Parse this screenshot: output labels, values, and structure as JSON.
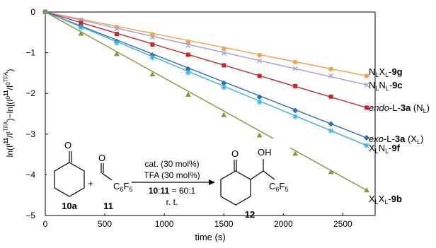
{
  "chart_data": {
    "type": "line",
    "xlabel": "time (s)",
    "ylabel": "ln(I_t11/I_tTFA) − ln(I_011/I_0TFA)",
    "xlim": [
      0,
      2700
    ],
    "ylim": [
      -5,
      0
    ],
    "x_ticks": [
      "0",
      "500",
      "1000",
      "1500",
      "2000",
      "2500"
    ],
    "y_ticks": [
      "0",
      "−1",
      "−2",
      "−3",
      "−4",
      "−5"
    ],
    "grid": false,
    "series": [
      {
        "name": "NLXL-9g",
        "color": "#f0a050",
        "marker": "circle",
        "x": [
          0,
          300,
          600,
          900,
          1200,
          1500,
          1800,
          2100,
          2400,
          2700
        ],
        "y": [
          0,
          -0.19,
          -0.37,
          -0.55,
          -0.73,
          -0.9,
          -1.06,
          -1.23,
          -1.4,
          -1.57
        ]
      },
      {
        "name": "NLNL-9c",
        "color": "#a99ad8",
        "marker": "x",
        "x": [
          0,
          300,
          600,
          900,
          1200,
          1500,
          1800,
          2100,
          2400,
          2700
        ],
        "y": [
          0,
          -0.21,
          -0.42,
          -0.62,
          -0.82,
          -1.01,
          -1.2,
          -1.39,
          -1.57,
          -1.79
        ]
      },
      {
        "name": "endo-L-3a (NL)",
        "color": "#c0282a",
        "marker": "square",
        "x": [
          0,
          300,
          600,
          900,
          1200,
          1500,
          1800,
          2100,
          2400,
          2700
        ],
        "y": [
          0,
          -0.27,
          -0.54,
          -0.8,
          -1.05,
          -1.31,
          -1.57,
          -1.82,
          -2.08,
          -2.35
        ]
      },
      {
        "name": "exo-L-3a (XL)",
        "color": "#2f6fb0",
        "marker": "diamond",
        "x": [
          0,
          300,
          600,
          900,
          1200,
          1500,
          1800,
          2100,
          2400,
          2700
        ],
        "y": [
          0,
          -0.36,
          -0.72,
          -1.06,
          -1.4,
          -1.75,
          -2.09,
          -2.42,
          -2.75,
          -3.09
        ]
      },
      {
        "name": "XLNL-9f",
        "color": "#3bb1de",
        "marker": "star",
        "x": [
          0,
          300,
          600,
          900,
          1200,
          1500,
          1800,
          2100,
          2400,
          2700
        ],
        "y": [
          0,
          -0.38,
          -0.76,
          -1.12,
          -1.49,
          -1.85,
          -2.21,
          -2.57,
          -2.92,
          -3.28
        ]
      },
      {
        "name": "XLXL-9b",
        "color": "#7e9a3c",
        "marker": "triangle",
        "x": [
          0,
          300,
          600,
          900,
          1200,
          1500,
          1800,
          2100,
          2400,
          2700
        ],
        "y": [
          0,
          -0.53,
          -1.03,
          -1.53,
          -2.03,
          -2.53,
          -3.03,
          -3.48,
          -3.93,
          -4.38
        ]
      }
    ]
  },
  "legend": [
    {
      "pre": "N",
      "s1": "L",
      "mid": "X",
      "s2": "L",
      "suf": "-",
      "bold": "9g",
      "tail": ""
    },
    {
      "pre": "N",
      "s1": "L",
      "mid": "N",
      "s2": "L",
      "suf": "-",
      "bold": "9c",
      "tail": ""
    },
    {
      "pre": "endo",
      "s1": "",
      "mid": "-L-",
      "s2": "",
      "suf": "",
      "bold": "3a",
      "tail": " (N",
      "tail_sub": "L",
      "tail_end": ")"
    },
    {
      "pre": "exo",
      "s1": "",
      "mid": "-L-",
      "s2": "",
      "suf": "",
      "bold": "3a",
      "tail": " (X",
      "tail_sub": "L",
      "tail_end": ")"
    },
    {
      "pre": "X",
      "s1": "L",
      "mid": "N",
      "s2": "L",
      "suf": "-",
      "bold": "9f",
      "tail": ""
    },
    {
      "pre": "X",
      "s1": "L",
      "mid": "X",
      "s2": "L",
      "suf": "-",
      "bold": "9b",
      "tail": ""
    }
  ],
  "scheme": {
    "compound_10a": "10a",
    "compound_11": "11",
    "compound_12": "12",
    "plus": "+",
    "carbonyl_o": "O",
    "c6f5": "C",
    "c6f5_sub_6": "6",
    "f_letter": "F",
    "c6f5_sub_5": "5",
    "oh": "OH",
    "cond_line1": "cat. (30 mol%)",
    "cond_line2": "TFA (30 mol%)",
    "ratio_a": "10",
    "ratio_colon": ":",
    "ratio_b": "11",
    "ratio_rest": " = 60:1",
    "cond_line4": "r. t."
  }
}
